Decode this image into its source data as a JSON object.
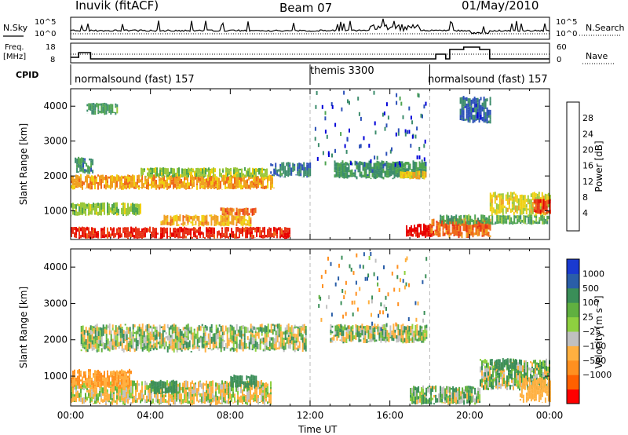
{
  "header": {
    "station": "Inuvik (fitACF)",
    "beam": "Beam 07",
    "date": "01/May/2010"
  },
  "top_panel": {
    "left_label": "N.Sky",
    "left_ticks": [
      "10^5",
      "10^0"
    ],
    "right_label": "N.Search",
    "right_ticks": [
      "10^5",
      "10^0"
    ]
  },
  "freq_panel": {
    "left_label_1": "Freq.",
    "left_label_2": "[MHz]",
    "left_ticks": [
      "18",
      "8"
    ],
    "right_label": "Nave",
    "right_ticks": [
      "60",
      "0"
    ]
  },
  "cpid": {
    "label": "CPID",
    "modes": [
      {
        "name": "normalsound (fast) 157",
        "start_hour": 0,
        "end_hour": 12
      },
      {
        "name": "themis 3300",
        "start_hour": 12,
        "end_hour": 18
      },
      {
        "name": "normalsound (fast) 157",
        "start_hour": 18,
        "end_hour": 24
      }
    ]
  },
  "power_panel": {
    "ylabel": "Slant Range [km]",
    "cbar_label": "Power [dB]",
    "cbar_ticks": [
      "28",
      "24",
      "20",
      "16",
      "12",
      "8",
      "4"
    ]
  },
  "velocity_panel": {
    "ylabel": "Slant Range [km]",
    "cbar_label": "Velocity [m s⁻¹]",
    "cbar_ticks": [
      "1000",
      "500",
      "100",
      "25",
      "−25",
      "−100",
      "−500",
      "−1000"
    ]
  },
  "xaxis": {
    "label": "Time UT",
    "ticks": [
      "00:00",
      "04:00",
      "08:00",
      "12:00",
      "16:00",
      "20:00",
      "00:00"
    ]
  },
  "colors": {
    "power": [
      "#0000d8",
      "#2c50b8",
      "#3c8c6c",
      "#4ea450",
      "#9cc83c",
      "#f0d010",
      "#f0a020",
      "#ee6a1a",
      "#e83418",
      "#e80000"
    ],
    "velocity": [
      "#ff0000",
      "#ff6000",
      "#ff9020",
      "#ffb040",
      "#c0c0c0",
      "#8ed040",
      "#60b040",
      "#3a8e58",
      "#2a5ea8",
      "#1a3ad0"
    ]
  },
  "chart_data": [
    {
      "type": "heatmap",
      "name": "power",
      "x_range_hours": [
        0,
        24
      ],
      "y_range_km": [
        180,
        4500
      ],
      "y_ticks": [
        1000,
        2000,
        3000,
        4000
      ],
      "color_range_db": [
        0,
        32
      ],
      "bands": [
        {
          "t0": 0,
          "t1": 11,
          "r0": 200,
          "r1": 550,
          "value": 28
        },
        {
          "t0": 4.5,
          "t1": 9,
          "r0": 550,
          "r1": 900,
          "value": 20
        },
        {
          "t0": 0,
          "t1": 3.5,
          "r0": 850,
          "r1": 1250,
          "value": 14
        },
        {
          "t0": 7.5,
          "t1": 9.3,
          "r0": 850,
          "r1": 1100,
          "value": 24
        },
        {
          "t0": 0,
          "t1": 10.2,
          "r0": 1600,
          "r1": 2050,
          "value": 21
        },
        {
          "t0": 0.2,
          "t1": 1.1,
          "r0": 2050,
          "r1": 2550,
          "value": 9
        },
        {
          "t0": 3.5,
          "t1": 9.8,
          "r0": 1950,
          "r1": 2250,
          "value": 14
        },
        {
          "t0": 10,
          "t1": 12,
          "r0": 1950,
          "r1": 2400,
          "value": 7
        },
        {
          "t0": 13.2,
          "t1": 17.8,
          "r0": 1900,
          "r1": 2450,
          "value": 9
        },
        {
          "t0": 16.5,
          "t1": 17.8,
          "r0": 1900,
          "r1": 2150,
          "value": 18
        },
        {
          "t0": 16.8,
          "t1": 18.2,
          "r0": 220,
          "r1": 650,
          "value": 30
        },
        {
          "t0": 18,
          "t1": 21,
          "r0": 220,
          "r1": 800,
          "value": 24
        },
        {
          "t0": 18.5,
          "t1": 24,
          "r0": 600,
          "r1": 900,
          "value": 11
        },
        {
          "t0": 21,
          "t1": 24,
          "r0": 850,
          "r1": 1550,
          "value": 17
        },
        {
          "t0": 23.2,
          "t1": 24,
          "r0": 900,
          "r1": 1350,
          "value": 27
        },
        {
          "t0": 0.8,
          "t1": 2.3,
          "r0": 3750,
          "r1": 4100,
          "value": 10
        },
        {
          "t0": 19.5,
          "t1": 21,
          "r0": 3500,
          "r1": 4300,
          "value": 6
        }
      ]
    },
    {
      "type": "heatmap",
      "name": "velocity",
      "x_range_hours": [
        0,
        24
      ],
      "y_range_km": [
        180,
        4500
      ],
      "y_ticks": [
        1000,
        2000,
        3000,
        4000
      ],
      "bands": [
        {
          "t0": 0,
          "t1": 10,
          "r0": 200,
          "r1": 900,
          "value": -100
        },
        {
          "t0": 0,
          "t1": 3,
          "r0": 650,
          "r1": 1200,
          "value": -500
        },
        {
          "t0": 4,
          "t1": 5.3,
          "r0": 500,
          "r1": 900,
          "value": 300
        },
        {
          "t0": 8,
          "t1": 9.3,
          "r0": 650,
          "r1": 1050,
          "value": 300
        },
        {
          "t0": 0.5,
          "t1": 11.8,
          "r0": 1650,
          "r1": 2450,
          "value": 0
        },
        {
          "t0": 13,
          "t1": 17.8,
          "r0": 1900,
          "r1": 2450,
          "value": 0
        },
        {
          "t0": 17,
          "t1": 20.5,
          "r0": 200,
          "r1": 750,
          "value": 50
        },
        {
          "t0": 20.5,
          "t1": 24,
          "r0": 600,
          "r1": 1500,
          "value": 0
        },
        {
          "t0": 21,
          "t1": 22.3,
          "r0": 1150,
          "r1": 1500,
          "value": 300
        },
        {
          "t0": 22.5,
          "t1": 24,
          "r0": 250,
          "r1": 1000,
          "value": -300
        }
      ]
    }
  ]
}
